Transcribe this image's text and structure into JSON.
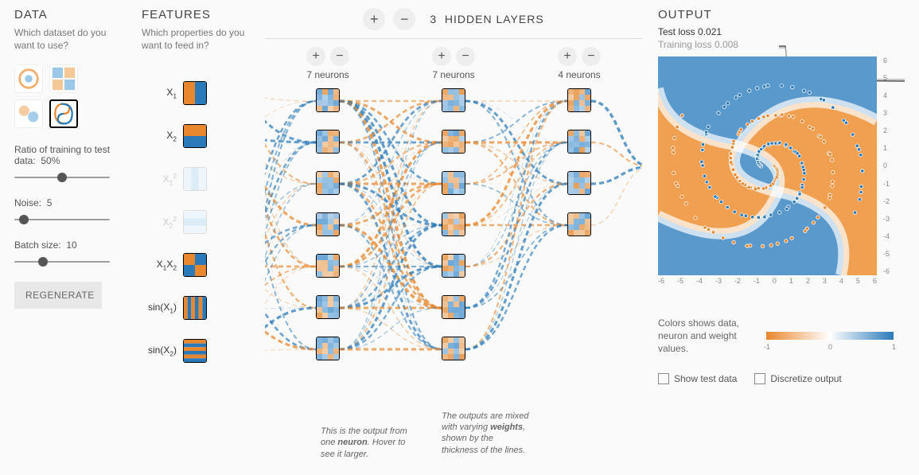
{
  "data_panel": {
    "title": "DATA",
    "subtitle": "Which dataset do you want to use?",
    "datasets": [
      "circle",
      "xor",
      "gauss",
      "spiral"
    ],
    "selected_dataset": "spiral",
    "sliders": {
      "ratio": {
        "label_prefix": "Ratio of training to test data:",
        "value": "50%",
        "pos": 0.5
      },
      "noise": {
        "label_prefix": "Noise:",
        "value": "5",
        "pos": 0.1
      },
      "batch": {
        "label_prefix": "Batch size:",
        "value": "10",
        "pos": 0.3
      }
    },
    "regenerate_label": "REGENERATE"
  },
  "features_panel": {
    "title": "FEATURES",
    "subtitle": "Which properties do you want to feed in?",
    "items": [
      {
        "label_html": "X<sub>1</sub>",
        "enabled": true
      },
      {
        "label_html": "X<sub>2</sub>",
        "enabled": true
      },
      {
        "label_html": "X<sub>1</sub><sup>2</sup>",
        "enabled": false
      },
      {
        "label_html": "X<sub>2</sub><sup>2</sup>",
        "enabled": false
      },
      {
        "label_html": "X<sub>1</sub>X<sub>2</sub>",
        "enabled": true
      },
      {
        "label_html": "sin(X<sub>1</sub>)",
        "enabled": true
      },
      {
        "label_html": "sin(X<sub>2</sub>)",
        "enabled": true
      }
    ]
  },
  "network_panel": {
    "hidden_layers_count": "3",
    "hidden_layers_label": "HIDDEN LAYERS",
    "layers": [
      {
        "neurons": 7,
        "label": "7 neurons"
      },
      {
        "neurons": 7,
        "label": "7 neurons"
      },
      {
        "neurons": 4,
        "label": "4 neurons"
      }
    ],
    "callout_neuron": "This is the output from one <b>neuron</b>. Hover to see it larger.",
    "callout_mixed": "The outputs are mixed with varying <b>weights</b>, shown by the thickness of the lines.",
    "colors": {
      "pos": "#2a7ab9",
      "neg": "#e8872d"
    }
  },
  "output_panel": {
    "title": "OUTPUT",
    "test_loss_label": "Test loss",
    "test_loss_value": "0.021",
    "train_loss_label": "Training loss",
    "train_loss_value": "0.008",
    "axis_ticks": [
      "-6",
      "-5",
      "-4",
      "-3",
      "-2",
      "-1",
      "0",
      "1",
      "2",
      "3",
      "4",
      "5",
      "6"
    ],
    "legend_text": "Colors shows data, neuron and weight values.",
    "legend_ticks": {
      "min": "-1",
      "mid": "0",
      "max": "1"
    },
    "check_show_test": "Show test data",
    "check_discretize": "Discretize output",
    "heatmap_colors": {
      "neg": "#e8872d",
      "mid": "#ffffff",
      "pos": "#2a7ab9"
    }
  }
}
